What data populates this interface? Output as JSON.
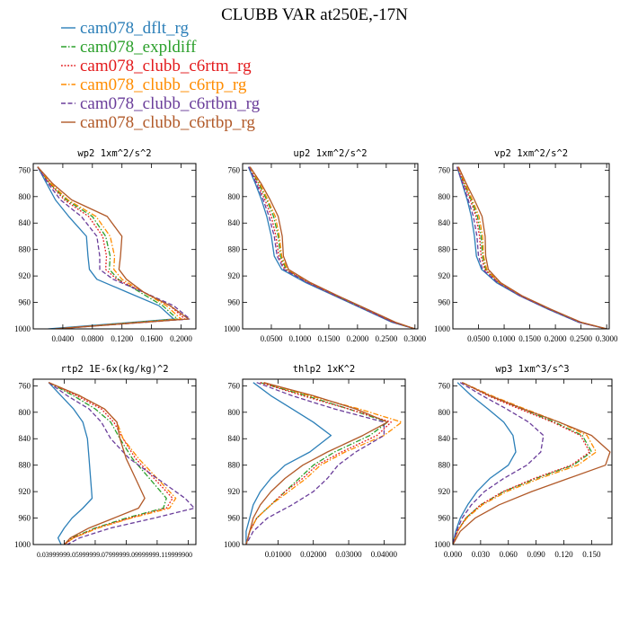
{
  "figure": {
    "title": "CLUBB VAR at250E,-17N"
  },
  "chart_data": [
    {
      "type": "line",
      "title": "wp2   1xm^2/s^2",
      "ylim": [
        1000,
        750
      ],
      "xlim": [
        0,
        0.22
      ],
      "xticks": [
        "0.0400",
        "0.0800",
        "0.1200",
        "0.1600",
        "0.2000"
      ],
      "xtick_values": [
        0.04,
        0.08,
        0.12,
        0.16,
        0.2
      ],
      "yticks": [
        "760",
        "800",
        "840",
        "880",
        "920",
        "960",
        "1000"
      ],
      "ytick_values": [
        760,
        800,
        840,
        880,
        920,
        960,
        1000
      ],
      "y": [
        755,
        780,
        805,
        830,
        860,
        890,
        910,
        925,
        945,
        965,
        985,
        1000
      ],
      "series": [
        {
          "name": "cam078_dflt_rg",
          "values": [
            0.006,
            0.018,
            0.03,
            0.048,
            0.072,
            0.074,
            0.076,
            0.086,
            0.128,
            0.17,
            0.19,
            0.02
          ]
        },
        {
          "name": "cam078_expldiff",
          "values": [
            0.006,
            0.022,
            0.045,
            0.08,
            0.098,
            0.104,
            0.103,
            0.115,
            0.145,
            0.175,
            0.195,
            0.03
          ]
        },
        {
          "name": "cam078_clubb_c6rtm_rg",
          "values": [
            0.006,
            0.022,
            0.042,
            0.075,
            0.094,
            0.099,
            0.098,
            0.113,
            0.15,
            0.185,
            0.205,
            0.03
          ]
        },
        {
          "name": "cam078_clubb_c6rtp_rg",
          "values": [
            0.006,
            0.024,
            0.047,
            0.085,
            0.104,
            0.11,
            0.109,
            0.12,
            0.15,
            0.18,
            0.2,
            0.03
          ]
        },
        {
          "name": "cam078_clubb_c6rtbm_rg",
          "values": [
            0.006,
            0.02,
            0.037,
            0.065,
            0.086,
            0.09,
            0.09,
            0.108,
            0.15,
            0.19,
            0.212,
            0.03
          ]
        },
        {
          "name": "cam078_clubb_c6rtbp_rg",
          "values": [
            0.006,
            0.026,
            0.052,
            0.1,
            0.12,
            0.118,
            0.116,
            0.126,
            0.15,
            0.185,
            0.21,
            0.03
          ]
        }
      ]
    },
    {
      "type": "line",
      "title": "up2   1xm^2/s^2",
      "ylim": [
        1000,
        750
      ],
      "xlim": [
        0,
        0.305
      ],
      "xticks": [
        "0.0500",
        "0.1000",
        "0.1500",
        "0.2000",
        "0.2500",
        "0.3000"
      ],
      "xtick_values": [
        0.05,
        0.1,
        0.15,
        0.2,
        0.25,
        0.3
      ],
      "yticks": [
        "760",
        "800",
        "840",
        "880",
        "920",
        "960",
        "1000"
      ],
      "ytick_values": [
        760,
        800,
        840,
        880,
        920,
        960,
        1000
      ],
      "y": [
        755,
        780,
        805,
        830,
        860,
        890,
        910,
        930,
        950,
        970,
        990,
        1000
      ],
      "series": [
        {
          "name": "cam078_dflt_rg",
          "values": [
            0.01,
            0.022,
            0.033,
            0.042,
            0.05,
            0.055,
            0.068,
            0.11,
            0.16,
            0.21,
            0.26,
            0.3
          ]
        },
        {
          "name": "cam078_expldiff",
          "values": [
            0.012,
            0.028,
            0.042,
            0.054,
            0.062,
            0.066,
            0.076,
            0.115,
            0.163,
            0.213,
            0.262,
            0.3
          ]
        },
        {
          "name": "cam078_clubb_c6rtm_rg",
          "values": [
            0.011,
            0.026,
            0.039,
            0.05,
            0.058,
            0.063,
            0.074,
            0.114,
            0.162,
            0.212,
            0.262,
            0.3
          ]
        },
        {
          "name": "cam078_clubb_c6rtp_rg",
          "values": [
            0.012,
            0.03,
            0.044,
            0.057,
            0.064,
            0.068,
            0.078,
            0.117,
            0.165,
            0.215,
            0.265,
            0.3
          ]
        },
        {
          "name": "cam078_clubb_c6rtbm_rg",
          "values": [
            0.011,
            0.024,
            0.036,
            0.046,
            0.055,
            0.06,
            0.072,
            0.113,
            0.162,
            0.212,
            0.262,
            0.3
          ]
        },
        {
          "name": "cam078_clubb_c6rtbp_rg",
          "values": [
            0.013,
            0.032,
            0.048,
            0.062,
            0.069,
            0.071,
            0.08,
            0.118,
            0.166,
            0.216,
            0.266,
            0.3
          ]
        }
      ]
    },
    {
      "type": "line",
      "title": "vp2   1xm^2/s^2",
      "ylim": [
        1000,
        750
      ],
      "xlim": [
        0,
        0.305
      ],
      "xticks": [
        "0.0500",
        "0.1000",
        "0.1500",
        "0.2000",
        "0.2500",
        "0.3000"
      ],
      "xtick_values": [
        0.05,
        0.1,
        0.15,
        0.2,
        0.25,
        0.3
      ],
      "yticks": [
        "760",
        "800",
        "840",
        "880",
        "920",
        "960",
        "1000"
      ],
      "ytick_values": [
        760,
        800,
        840,
        880,
        920,
        960,
        1000
      ],
      "y": [
        755,
        780,
        805,
        830,
        860,
        890,
        910,
        930,
        950,
        970,
        990,
        1000
      ],
      "series": [
        {
          "name": "cam078_dflt_rg",
          "values": [
            0.008,
            0.018,
            0.028,
            0.036,
            0.042,
            0.046,
            0.056,
            0.085,
            0.13,
            0.185,
            0.245,
            0.3
          ]
        },
        {
          "name": "cam078_expldiff",
          "values": [
            0.009,
            0.022,
            0.036,
            0.048,
            0.055,
            0.058,
            0.064,
            0.09,
            0.133,
            0.188,
            0.248,
            0.3
          ]
        },
        {
          "name": "cam078_clubb_c6rtm_rg",
          "values": [
            0.009,
            0.021,
            0.034,
            0.045,
            0.052,
            0.055,
            0.062,
            0.089,
            0.132,
            0.187,
            0.247,
            0.3
          ]
        },
        {
          "name": "cam078_clubb_c6rtp_rg",
          "values": [
            0.01,
            0.024,
            0.038,
            0.051,
            0.058,
            0.06,
            0.066,
            0.091,
            0.134,
            0.189,
            0.249,
            0.3
          ]
        },
        {
          "name": "cam078_clubb_c6rtbm_rg",
          "values": [
            0.008,
            0.019,
            0.03,
            0.04,
            0.047,
            0.05,
            0.058,
            0.087,
            0.131,
            0.186,
            0.246,
            0.3
          ]
        },
        {
          "name": "cam078_clubb_c6rtbp_rg",
          "values": [
            0.011,
            0.026,
            0.042,
            0.057,
            0.063,
            0.064,
            0.069,
            0.093,
            0.135,
            0.19,
            0.25,
            0.3
          ]
        }
      ]
    },
    {
      "type": "line",
      "title": "rtp2   1E-6x(kg/kg)^2",
      "ylim": [
        1000,
        750
      ],
      "xlim": [
        0.02,
        0.125
      ],
      "xticks": [
        "0.039999999",
        "0.059999998",
        "0.079999998",
        "0.099999998",
        "0.11999999"
      ],
      "xtick_values": [
        0.04,
        0.06,
        0.08,
        0.1,
        0.12
      ],
      "xtick_text": "0.03999999.05999999.07999999.09999999.119999900",
      "yticks": [
        "760",
        "800",
        "840",
        "880",
        "920",
        "960",
        "1000"
      ],
      "ytick_values": [
        760,
        800,
        840,
        880,
        920,
        960,
        1000
      ],
      "y": [
        755,
        775,
        795,
        815,
        840,
        870,
        900,
        930,
        945,
        960,
        975,
        990,
        1000
      ],
      "series": [
        {
          "name": "cam078_dflt_rg",
          "values": [
            0.03,
            0.038,
            0.046,
            0.052,
            0.055,
            0.056,
            0.057,
            0.058,
            0.052,
            0.045,
            0.04,
            0.036,
            0.038
          ]
        },
        {
          "name": "cam078_expldiff",
          "values": [
            0.03,
            0.046,
            0.06,
            0.07,
            0.076,
            0.084,
            0.095,
            0.106,
            0.104,
            0.08,
            0.06,
            0.045,
            0.04
          ]
        },
        {
          "name": "cam078_clubb_c6rtm_rg",
          "values": [
            0.03,
            0.048,
            0.064,
            0.072,
            0.078,
            0.086,
            0.098,
            0.11,
            0.106,
            0.082,
            0.061,
            0.046,
            0.04
          ]
        },
        {
          "name": "cam078_clubb_c6rtp_rg",
          "values": [
            0.03,
            0.05,
            0.066,
            0.074,
            0.078,
            0.088,
            0.1,
            0.112,
            0.108,
            0.083,
            0.062,
            0.046,
            0.04
          ]
        },
        {
          "name": "cam078_clubb_c6rtbm_rg",
          "values": [
            0.03,
            0.042,
            0.056,
            0.064,
            0.07,
            0.082,
            0.1,
            0.118,
            0.124,
            0.098,
            0.07,
            0.05,
            0.042
          ]
        },
        {
          "name": "cam078_clubb_c6rtbp_rg",
          "values": [
            0.03,
            0.05,
            0.066,
            0.074,
            0.076,
            0.08,
            0.086,
            0.092,
            0.088,
            0.072,
            0.056,
            0.044,
            0.04
          ]
        }
      ]
    },
    {
      "type": "line",
      "title": "thlp2   1xK^2",
      "ylim": [
        1000,
        750
      ],
      "xlim": [
        0,
        0.046
      ],
      "xticks": [
        "0.01000",
        "0.02000",
        "0.03000",
        "0.04000"
      ],
      "xtick_values": [
        0.01,
        0.02,
        0.03,
        0.04
      ],
      "yticks": [
        "760",
        "800",
        "840",
        "880",
        "920",
        "960",
        "1000"
      ],
      "ytick_values": [
        760,
        800,
        840,
        880,
        920,
        960,
        1000
      ],
      "y": [
        755,
        775,
        795,
        815,
        835,
        860,
        880,
        900,
        920,
        940,
        960,
        980,
        1000
      ],
      "series": [
        {
          "name": "cam078_dflt_rg",
          "values": [
            0.003,
            0.008,
            0.014,
            0.02,
            0.025,
            0.019,
            0.012,
            0.008,
            0.005,
            0.003,
            0.002,
            0.001,
            0.001
          ]
        },
        {
          "name": "cam078_expldiff",
          "values": [
            0.005,
            0.018,
            0.03,
            0.041,
            0.036,
            0.026,
            0.02,
            0.016,
            0.012,
            0.008,
            0.004,
            0.002,
            0.001
          ]
        },
        {
          "name": "cam078_clubb_c6rtm_rg",
          "values": [
            0.005,
            0.017,
            0.03,
            0.042,
            0.038,
            0.028,
            0.021,
            0.017,
            0.012,
            0.008,
            0.004,
            0.002,
            0.001
          ]
        },
        {
          "name": "cam078_clubb_c6rtp_rg",
          "values": [
            0.006,
            0.019,
            0.033,
            0.045,
            0.04,
            0.029,
            0.022,
            0.018,
            0.013,
            0.008,
            0.004,
            0.002,
            0.001
          ]
        },
        {
          "name": "cam078_clubb_c6rtbm_rg",
          "values": [
            0.004,
            0.014,
            0.026,
            0.04,
            0.04,
            0.032,
            0.027,
            0.024,
            0.02,
            0.014,
            0.007,
            0.003,
            0.001
          ]
        },
        {
          "name": "cam078_clubb_c6rtbp_rg",
          "values": [
            0.006,
            0.02,
            0.032,
            0.041,
            0.034,
            0.024,
            0.017,
            0.012,
            0.008,
            0.005,
            0.003,
            0.002,
            0.001
          ]
        }
      ]
    },
    {
      "type": "line",
      "title": "wp3   1xm^3/s^3",
      "ylim": [
        1000,
        750
      ],
      "xlim": [
        0,
        0.172
      ],
      "xticks": [
        "0.000",
        "0.030",
        "0.060",
        "0.090",
        "0.120",
        "0.150"
      ],
      "xtick_values": [
        0,
        0.03,
        0.06,
        0.09,
        0.12,
        0.15
      ],
      "yticks": [
        "760",
        "800",
        "840",
        "880",
        "920",
        "960",
        "1000"
      ],
      "ytick_values": [
        760,
        800,
        840,
        880,
        920,
        960,
        1000
      ],
      "y": [
        755,
        775,
        795,
        815,
        835,
        860,
        880,
        900,
        920,
        940,
        960,
        980,
        1000
      ],
      "series": [
        {
          "name": "cam078_dflt_rg",
          "values": [
            0.005,
            0.02,
            0.038,
            0.055,
            0.065,
            0.068,
            0.06,
            0.04,
            0.026,
            0.016,
            0.008,
            0.003,
            0.0
          ]
        },
        {
          "name": "cam078_expldiff",
          "values": [
            0.01,
            0.04,
            0.075,
            0.11,
            0.14,
            0.15,
            0.13,
            0.09,
            0.055,
            0.03,
            0.014,
            0.005,
            0.0
          ]
        },
        {
          "name": "cam078_clubb_c6rtm_rg",
          "values": [
            0.01,
            0.038,
            0.072,
            0.108,
            0.138,
            0.148,
            0.128,
            0.088,
            0.054,
            0.03,
            0.014,
            0.005,
            0.0
          ]
        },
        {
          "name": "cam078_clubb_c6rtp_rg",
          "values": [
            0.01,
            0.042,
            0.078,
            0.115,
            0.145,
            0.155,
            0.135,
            0.094,
            0.058,
            0.032,
            0.015,
            0.005,
            0.0
          ]
        },
        {
          "name": "cam078_clubb_c6rtbm_rg",
          "values": [
            0.008,
            0.032,
            0.058,
            0.082,
            0.098,
            0.095,
            0.08,
            0.055,
            0.034,
            0.02,
            0.01,
            0.004,
            0.0
          ]
        },
        {
          "name": "cam078_clubb_c6rtbp_rg",
          "values": [
            0.01,
            0.04,
            0.076,
            0.115,
            0.15,
            0.17,
            0.165,
            0.125,
            0.085,
            0.05,
            0.024,
            0.008,
            0.0
          ]
        }
      ]
    }
  ],
  "legend": [
    {
      "label": "cam078_dflt_rg",
      "color": "#2c7fb8",
      "dash": "solid"
    },
    {
      "label": "cam078_expldiff",
      "color": "#2ca02c",
      "dash": "dashdot"
    },
    {
      "label": "cam078_clubb_c6rtm_rg",
      "color": "#e31a1c",
      "dash": "dot"
    },
    {
      "label": "cam078_clubb_c6rtp_rg",
      "color": "#ff8c00",
      "dash": "dashdot"
    },
    {
      "label": "cam078_clubb_c6rtbm_rg",
      "color": "#6a3d9a",
      "dash": "dash"
    },
    {
      "label": "cam078_clubb_c6rtbp_rg",
      "color": "#b15928",
      "dash": "solid"
    }
  ]
}
